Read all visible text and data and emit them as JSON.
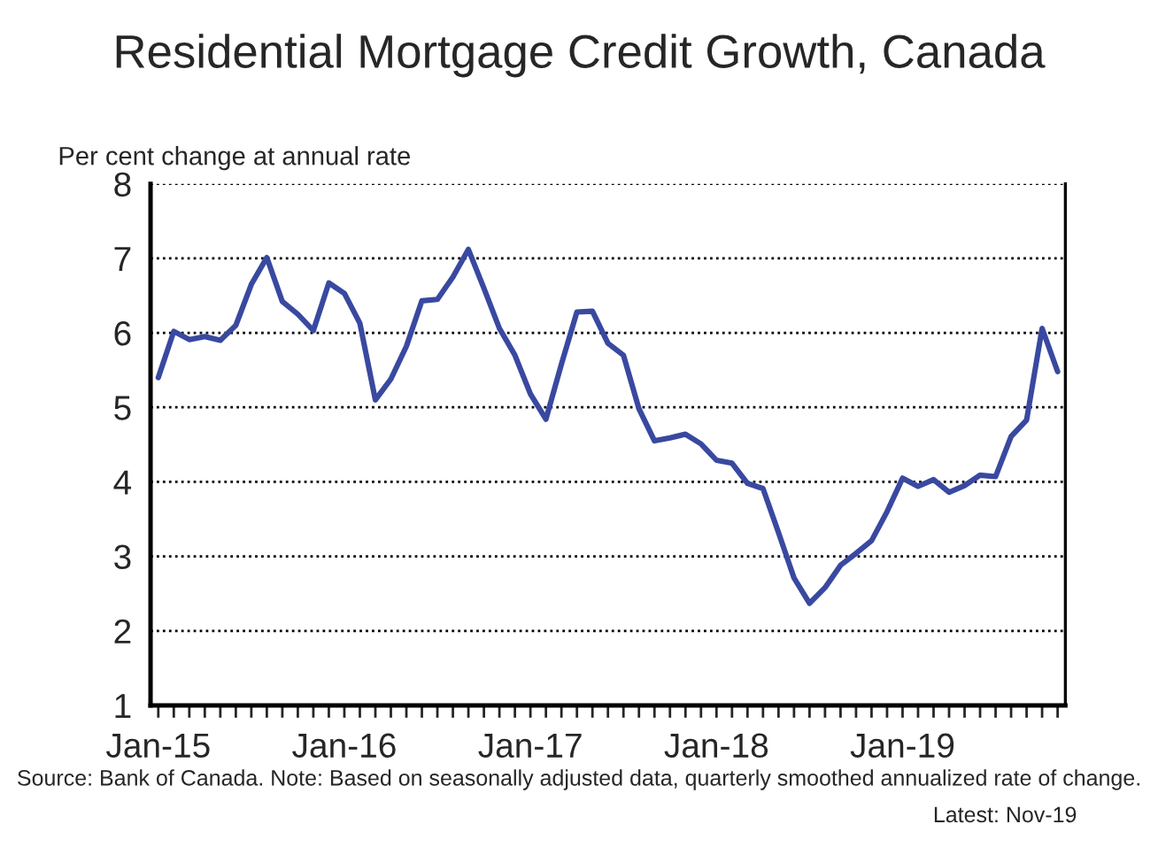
{
  "chart_data": {
    "type": "line",
    "title": "Residential Mortgage Credit Growth, Canada",
    "ylabel": "Per cent change at annual rate",
    "categories": [
      "Jan-15",
      null,
      null,
      null,
      null,
      null,
      null,
      null,
      null,
      null,
      null,
      null,
      "Jan-16",
      null,
      null,
      null,
      null,
      null,
      null,
      null,
      null,
      null,
      null,
      null,
      "Jan-17",
      null,
      null,
      null,
      null,
      null,
      null,
      null,
      null,
      null,
      null,
      null,
      "Jan-18",
      null,
      null,
      null,
      null,
      null,
      null,
      null,
      null,
      null,
      null,
      null,
      "Jan-19",
      null,
      null,
      null,
      null,
      null,
      null,
      null,
      null,
      null,
      null
    ],
    "series": [
      {
        "color": "#3949a0",
        "values": [
          5.4,
          6.02,
          5.91,
          5.95,
          5.9,
          6.1,
          6.65,
          7.01,
          6.42,
          6.25,
          6.03,
          6.67,
          6.53,
          6.13,
          5.1,
          5.38,
          5.82,
          6.43,
          6.45,
          6.75,
          7.12,
          6.6,
          6.06,
          5.7,
          5.18,
          4.84,
          5.58,
          6.28,
          6.29,
          5.86,
          5.7,
          4.98,
          4.55,
          4.59,
          4.64,
          4.51,
          4.29,
          4.25,
          3.98,
          3.91,
          3.32,
          2.71,
          2.37,
          2.58,
          2.88,
          3.04,
          3.21,
          3.6,
          4.05,
          3.94,
          4.03,
          3.86,
          3.95,
          4.09,
          4.07,
          4.61,
          4.83,
          6.06,
          5.48
        ]
      }
    ],
    "ylim": [
      1,
      8
    ],
    "yticks": [
      1,
      2,
      3,
      4,
      5,
      6,
      7,
      8
    ],
    "grid": "y",
    "line_style": "solid",
    "marker": "none",
    "annotations": [
      "Source: Bank of Canada. Note: Based on seasonally adjusted data, quarterly smoothed annualized rate of change.",
      "Latest: Nov-19"
    ]
  }
}
